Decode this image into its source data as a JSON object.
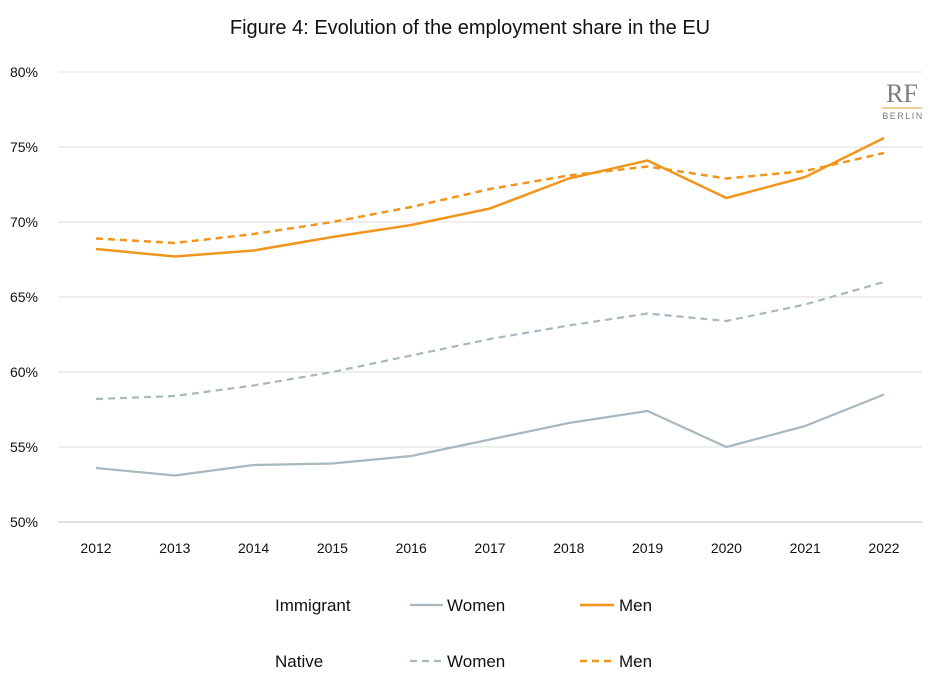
{
  "chart_data": {
    "type": "line",
    "title": "Figure 4: Evolution of the employment share in the EU",
    "categories": [
      "2012",
      "2013",
      "2014",
      "2015",
      "2016",
      "2017",
      "2018",
      "2019",
      "2020",
      "2021",
      "2022"
    ],
    "y_ticks": [
      "50%",
      "55%",
      "60%",
      "65%",
      "70%",
      "75%",
      "80%"
    ],
    "ylim": [
      50,
      80
    ],
    "grid": "horizontal",
    "legend_placement": "bottom",
    "legend": {
      "group_labels": [
        "Immigrant",
        "Native"
      ],
      "series_labels": [
        "Women",
        "Men"
      ]
    },
    "series": [
      {
        "group": "Immigrant",
        "name": "Women",
        "color": "#a8b8c0",
        "dash": "solid",
        "values": [
          53.6,
          53.1,
          53.8,
          53.9,
          54.4,
          55.5,
          56.6,
          57.4,
          55.0,
          56.4,
          58.5
        ]
      },
      {
        "group": "Immigrant",
        "name": "Men",
        "color": "#f0961e",
        "dash": "solid",
        "values": [
          68.2,
          67.7,
          68.1,
          69.0,
          69.8,
          70.9,
          72.9,
          74.1,
          71.6,
          73.0,
          75.6
        ]
      },
      {
        "group": "Native",
        "name": "Women",
        "color": "#a8b8c0",
        "dash": "dashed",
        "values": [
          58.2,
          58.4,
          59.1,
          60.0,
          61.1,
          62.2,
          63.1,
          63.9,
          63.4,
          64.5,
          66.0
        ]
      },
      {
        "group": "Native",
        "name": "Men",
        "color": "#f0961e",
        "dash": "dashed",
        "values": [
          68.9,
          68.6,
          69.2,
          70.0,
          71.0,
          72.2,
          73.1,
          73.7,
          72.9,
          73.4,
          74.6
        ]
      }
    ]
  },
  "logo": {
    "main": "RF",
    "sub": "BERLIN"
  }
}
